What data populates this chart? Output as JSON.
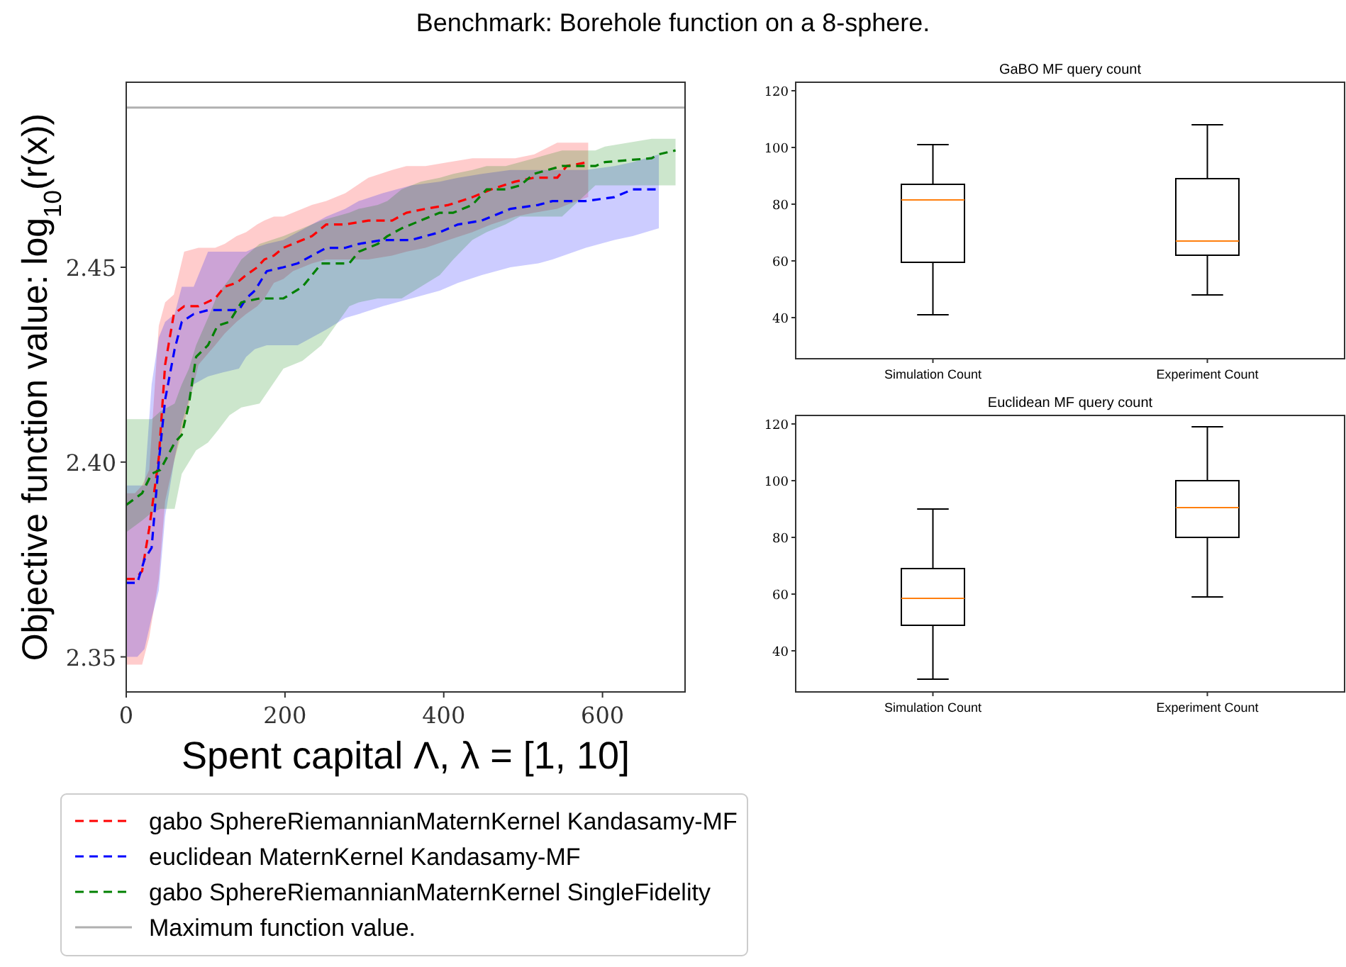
{
  "chart_data": [
    {
      "type": "line",
      "title": "Benchmark: Borehole function on a 8-sphere.",
      "xlabel": "Spent capital Λ, λ = [1, 10]",
      "ylabel": "Objective function value: log$_{10}$(r(x))",
      "xlim": [
        0,
        704
      ],
      "ylim": [
        2.341,
        2.4975
      ],
      "xticks": [
        0,
        200,
        400,
        600
      ],
      "yticks": [
        2.35,
        {
          "value": 2.4,
          "label": "2.40"
        },
        2.45
      ],
      "line_style": "dashed",
      "legend": "bottom",
      "ref_lines": [
        {
          "axis": "y",
          "value": 2.491,
          "label": "Maximum function value.",
          "color": "#b0b0b0"
        }
      ],
      "series": [
        {
          "name": "gabo SphereRiemannianMaternKernel Kandasamy-MF",
          "color": "#ff0000",
          "x": [
            0,
            11,
            20,
            29,
            41,
            49,
            60,
            73,
            91,
            112,
            124,
            139,
            151,
            165,
            174,
            186,
            198,
            210,
            222,
            234,
            252,
            276,
            305,
            335,
            353,
            377,
            406,
            436,
            460,
            490,
            514,
            543,
            555,
            582
          ],
          "values": [
            2.37,
            2.37,
            2.372,
            2.383,
            2.401,
            2.425,
            2.438,
            2.44,
            2.44,
            2.442,
            2.445,
            2.446,
            2.448,
            2.45,
            2.452,
            2.453,
            2.455,
            2.456,
            2.457,
            2.458,
            2.461,
            2.461,
            2.462,
            2.462,
            2.464,
            2.465,
            2.466,
            2.468,
            2.47,
            2.472,
            2.473,
            2.473,
            2.476,
            2.477
          ],
          "lower": [
            2.348,
            2.348,
            2.348,
            2.355,
            2.37,
            2.39,
            2.4,
            2.41,
            2.425,
            2.43,
            2.433,
            2.436,
            2.438,
            2.44,
            2.442,
            2.446,
            2.447,
            2.449,
            2.45,
            2.451,
            2.452,
            2.452,
            2.452,
            2.453,
            2.454,
            2.455,
            2.457,
            2.459,
            2.461,
            2.463,
            2.464,
            2.465,
            2.466,
            2.468
          ],
          "upper": [
            2.392,
            2.392,
            2.394,
            2.398,
            2.435,
            2.441,
            2.443,
            2.454,
            2.455,
            2.455,
            2.456,
            2.458,
            2.459,
            2.461,
            2.462,
            2.463,
            2.463,
            2.464,
            2.465,
            2.466,
            2.467,
            2.469,
            2.473,
            2.475,
            2.476,
            2.476,
            2.477,
            2.478,
            2.478,
            2.478,
            2.479,
            2.482,
            2.482,
            2.482
          ]
        },
        {
          "name": "euclidean MaternKernel Kandasamy-MF",
          "color": "#0000ff",
          "x": [
            0,
            14,
            23,
            32,
            41,
            49,
            61,
            70,
            85,
            103,
            121,
            142,
            151,
            162,
            177,
            198,
            216,
            234,
            252,
            276,
            293,
            323,
            359,
            395,
            418,
            448,
            484,
            519,
            537,
            579,
            615,
            638,
            671
          ],
          "values": [
            2.369,
            2.369,
            2.375,
            2.378,
            2.4,
            2.416,
            2.429,
            2.436,
            2.438,
            2.439,
            2.439,
            2.439,
            2.442,
            2.444,
            2.449,
            2.45,
            2.451,
            2.453,
            2.455,
            2.455,
            2.456,
            2.457,
            2.457,
            2.459,
            2.461,
            2.462,
            2.465,
            2.466,
            2.467,
            2.467,
            2.468,
            2.47,
            2.47
          ],
          "lower": [
            2.35,
            2.35,
            2.352,
            2.36,
            2.367,
            2.386,
            2.401,
            2.41,
            2.42,
            2.422,
            2.423,
            2.424,
            2.427,
            2.429,
            2.43,
            2.43,
            2.43,
            2.432,
            2.434,
            2.437,
            2.438,
            2.44,
            2.442,
            2.444,
            2.446,
            2.448,
            2.45,
            2.451,
            2.452,
            2.455,
            2.457,
            2.458,
            2.46
          ],
          "upper": [
            2.394,
            2.394,
            2.394,
            2.42,
            2.432,
            2.436,
            2.438,
            2.445,
            2.445,
            2.454,
            2.454,
            2.454,
            2.454,
            2.455,
            2.456,
            2.457,
            2.459,
            2.461,
            2.463,
            2.465,
            2.467,
            2.469,
            2.471,
            2.472,
            2.473,
            2.474,
            2.475,
            2.475,
            2.475,
            2.475,
            2.476,
            2.477,
            2.479
          ]
        },
        {
          "name": "gabo SphereRiemannianMaternKernel SingleFidelity",
          "color": "#008000",
          "x": [
            0,
            20,
            32,
            43,
            61,
            70,
            79,
            88,
            103,
            115,
            130,
            145,
            168,
            198,
            222,
            246,
            281,
            293,
            317,
            329,
            347,
            371,
            395,
            412,
            436,
            454,
            478,
            496,
            514,
            549,
            591,
            603,
            662,
            671,
            692
          ],
          "values": [
            2.389,
            2.392,
            2.397,
            2.398,
            2.405,
            2.407,
            2.415,
            2.427,
            2.43,
            2.435,
            2.436,
            2.441,
            2.442,
            2.442,
            2.445,
            2.451,
            2.451,
            2.454,
            2.456,
            2.458,
            2.46,
            2.462,
            2.464,
            2.464,
            2.466,
            2.47,
            2.47,
            2.471,
            2.474,
            2.476,
            2.476,
            2.477,
            2.478,
            2.479,
            2.48
          ],
          "lower": [
            2.382,
            2.385,
            2.387,
            2.388,
            2.388,
            2.397,
            2.4,
            2.403,
            2.405,
            2.408,
            2.412,
            2.414,
            2.415,
            2.424,
            2.426,
            2.43,
            2.44,
            2.441,
            2.442,
            2.442,
            2.442,
            2.445,
            2.448,
            2.452,
            2.457,
            2.459,
            2.461,
            2.463,
            2.463,
            2.463,
            2.471,
            2.471,
            2.471,
            2.471,
            2.471
          ],
          "upper": [
            2.411,
            2.411,
            2.411,
            2.413,
            2.415,
            2.42,
            2.424,
            2.43,
            2.437,
            2.443,
            2.447,
            2.452,
            2.456,
            2.458,
            2.46,
            2.462,
            2.464,
            2.465,
            2.466,
            2.467,
            2.47,
            2.472,
            2.473,
            2.474,
            2.475,
            2.476,
            2.476,
            2.477,
            2.478,
            2.48,
            2.48,
            2.481,
            2.483,
            2.483,
            2.483
          ]
        }
      ]
    },
    {
      "type": "box",
      "title": "GaBO MF query count",
      "categories": [
        "Simulation Count",
        "Experiment Count"
      ],
      "ylim": [
        25.5,
        123
      ],
      "yticks": [
        40,
        60,
        80,
        100,
        120
      ],
      "boxes": [
        {
          "low": 41,
          "q1": 59.5,
          "median": 81.5,
          "q3": 87,
          "high": 101
        },
        {
          "low": 48,
          "q1": 62,
          "median": 67,
          "q3": 89,
          "high": 108
        }
      ]
    },
    {
      "type": "box",
      "title": "Euclidean MF query count",
      "categories": [
        "Simulation Count",
        "Experiment Count"
      ],
      "ylim": [
        25.5,
        123
      ],
      "yticks": [
        40,
        60,
        80,
        100,
        120
      ],
      "boxes": [
        {
          "low": 30,
          "q1": 49,
          "median": 58.5,
          "q3": 69,
          "high": 90
        },
        {
          "low": 59,
          "q1": 80,
          "median": 90.5,
          "q3": 100,
          "high": 119
        }
      ]
    }
  ]
}
